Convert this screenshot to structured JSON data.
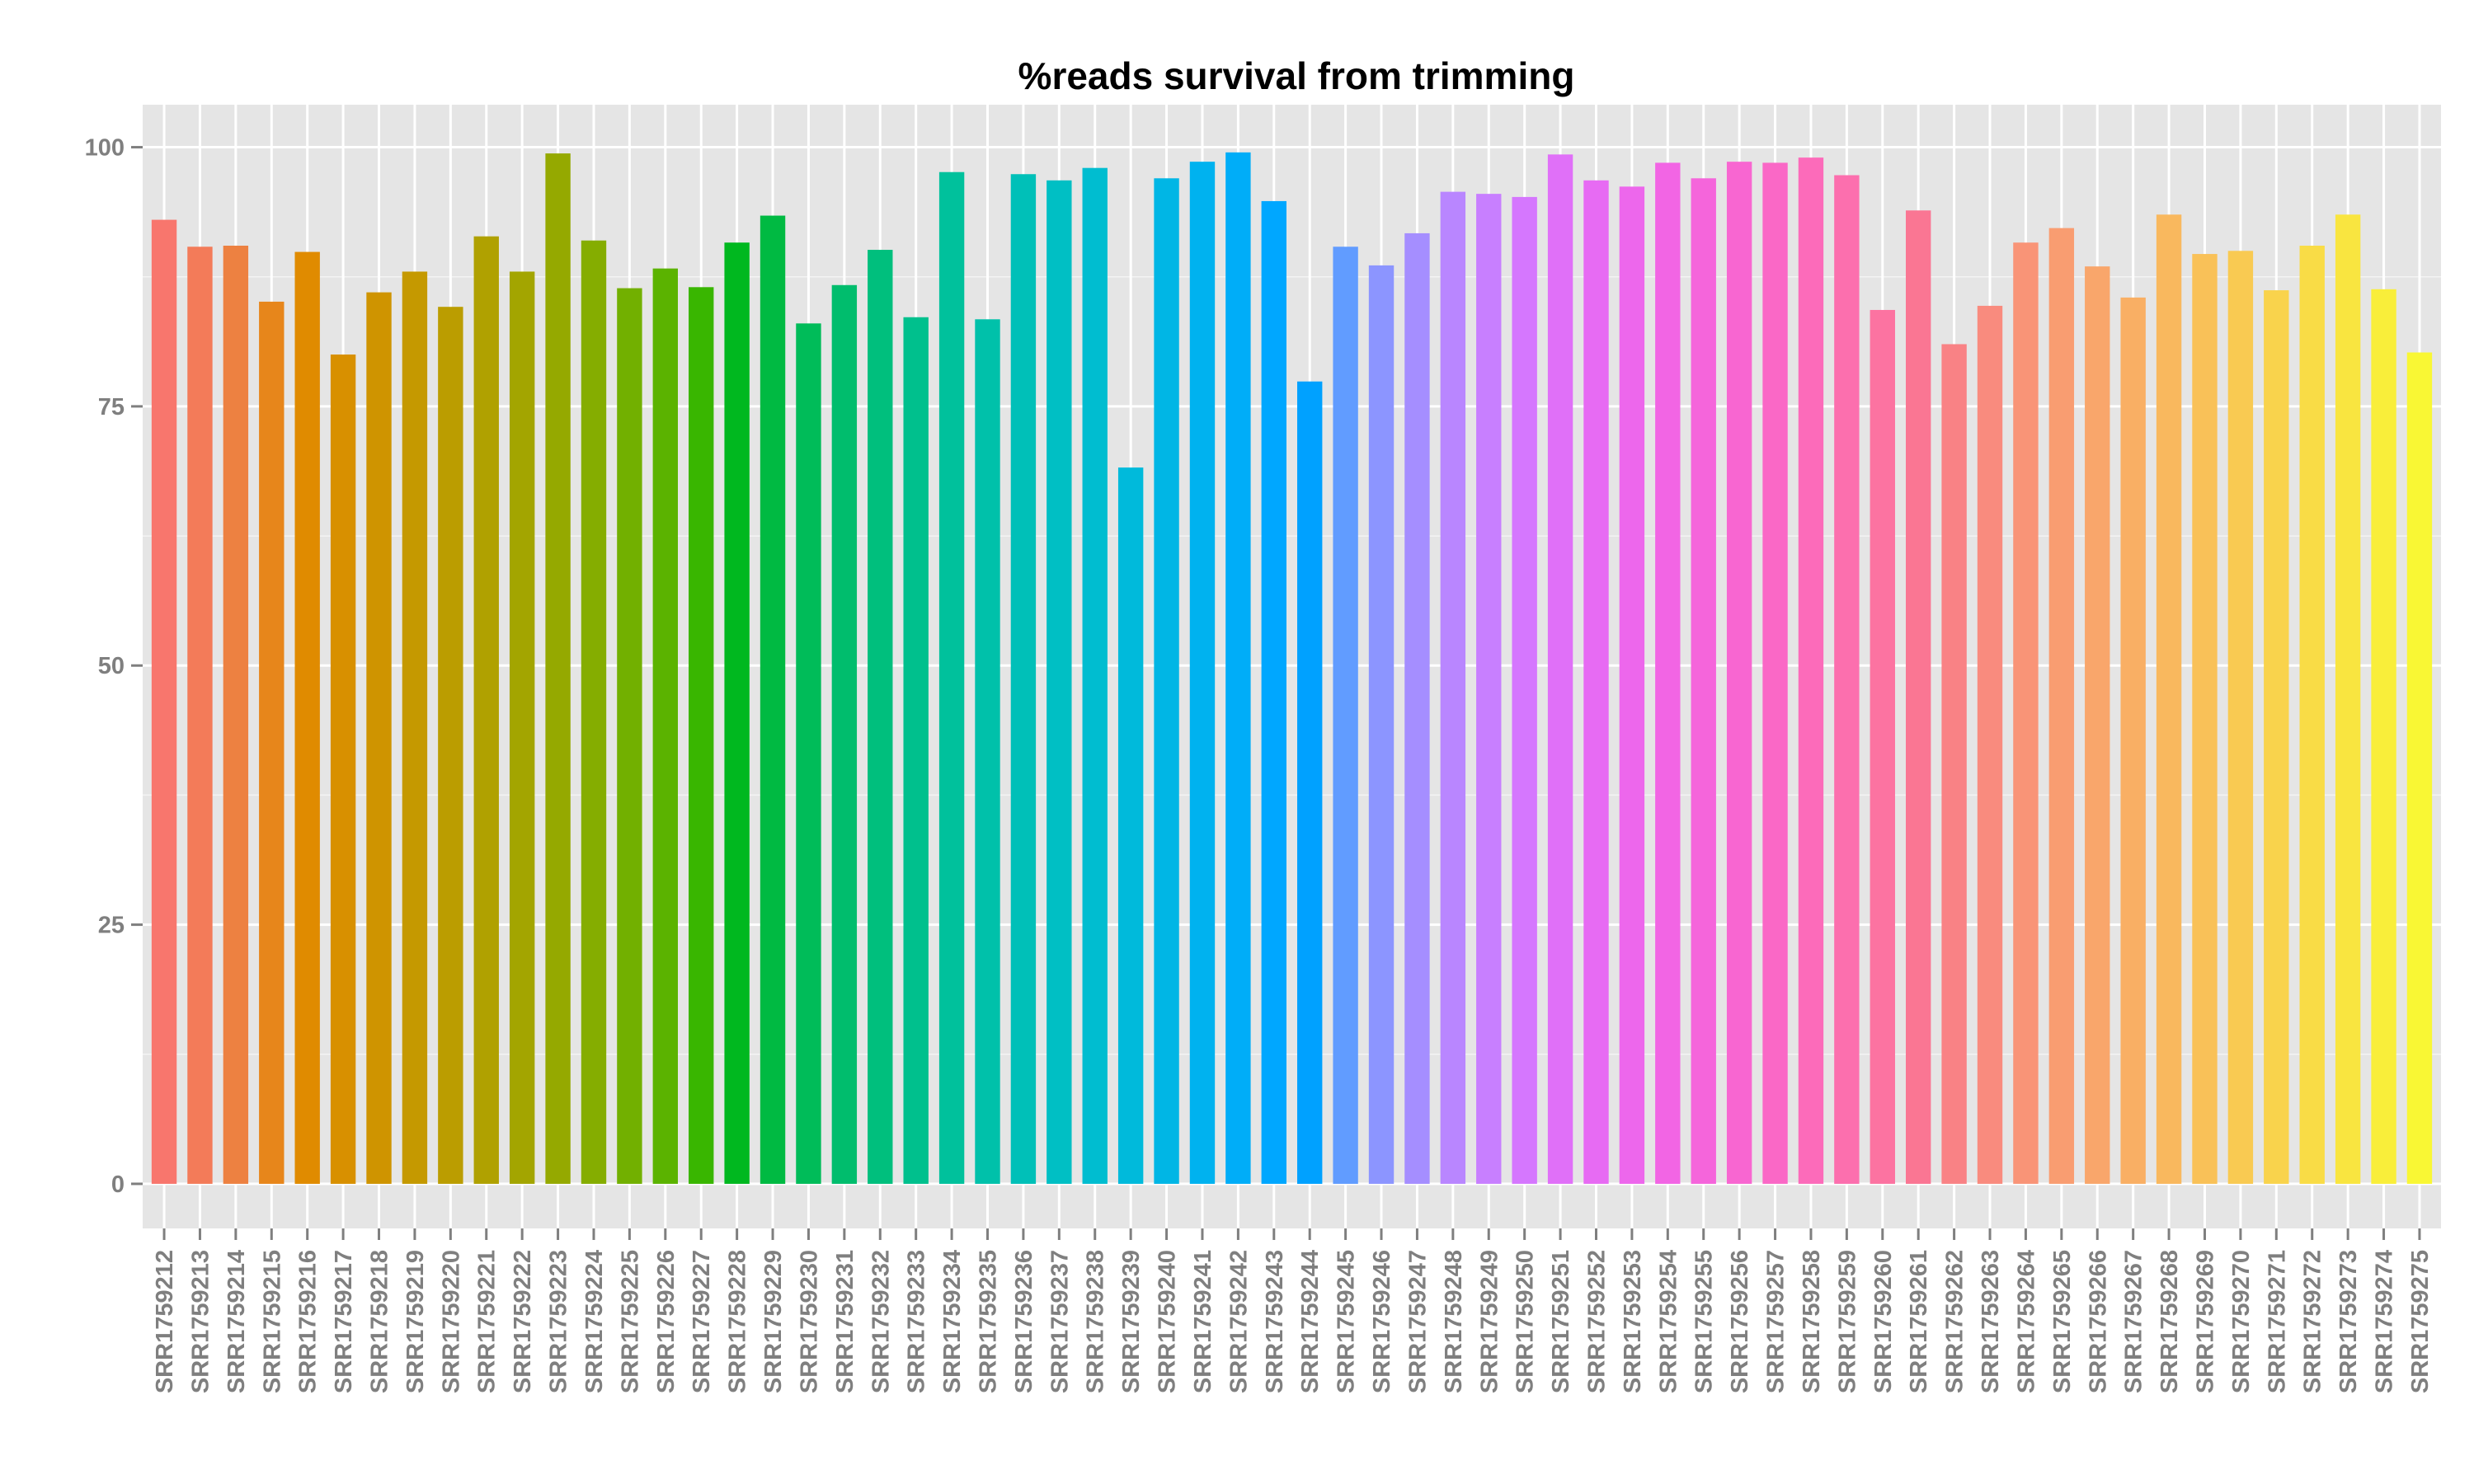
{
  "chart_data": {
    "type": "bar",
    "title": "%reads survival from trimming",
    "xlabel": "",
    "ylabel": "",
    "ylim": [
      -4.3,
      104.1
    ],
    "yticks": [
      0,
      25,
      50,
      75,
      100
    ],
    "grid": true,
    "legend": "none",
    "panel_color": "#e5e5e5",
    "gridline_color": "#ffffff",
    "categories": [
      "SRR1759212",
      "SRR1759213",
      "SRR1759214",
      "SRR1759215",
      "SRR1759216",
      "SRR1759217",
      "SRR1759218",
      "SRR1759219",
      "SRR1759220",
      "SRR1759221",
      "SRR1759222",
      "SRR1759223",
      "SRR1759224",
      "SRR1759225",
      "SRR1759226",
      "SRR1759227",
      "SRR1759228",
      "SRR1759229",
      "SRR1759230",
      "SRR1759231",
      "SRR1759232",
      "SRR1759233",
      "SRR1759234",
      "SRR1759235",
      "SRR1759236",
      "SRR1759237",
      "SRR1759238",
      "SRR1759239",
      "SRR1759240",
      "SRR1759241",
      "SRR1759242",
      "SRR1759243",
      "SRR1759244",
      "SRR1759245",
      "SRR1759246",
      "SRR1759247",
      "SRR1759248",
      "SRR1759249",
      "SRR1759250",
      "SRR1759251",
      "SRR1759252",
      "SRR1759253",
      "SRR1759254",
      "SRR1759255",
      "SRR1759256",
      "SRR1759257",
      "SRR1759258",
      "SRR1759259",
      "SRR1759260",
      "SRR1759261",
      "SRR1759262",
      "SRR1759263",
      "SRR1759264",
      "SRR1759265",
      "SRR1759266",
      "SRR1759267",
      "SRR1759268",
      "SRR1759269",
      "SRR1759270",
      "SRR1759271",
      "SRR1759272",
      "SRR1759273",
      "SRR1759274",
      "SRR1759275"
    ],
    "values": [
      93.0,
      90.4,
      90.5,
      85.1,
      89.9,
      80.0,
      86.0,
      88.0,
      84.6,
      91.4,
      88.0,
      99.4,
      91.0,
      86.4,
      88.3,
      86.5,
      90.8,
      93.4,
      83.0,
      86.7,
      90.1,
      83.6,
      97.6,
      83.4,
      97.4,
      96.8,
      98.0,
      69.1,
      97.0,
      98.6,
      99.5,
      94.8,
      77.4,
      90.4,
      88.6,
      91.7,
      95.7,
      95.5,
      95.2,
      99.3,
      96.8,
      96.2,
      98.5,
      97.0,
      98.6,
      98.5,
      99.0,
      97.3,
      84.3,
      93.9,
      81.0,
      84.7,
      90.8,
      92.2,
      88.5,
      85.5,
      93.5,
      89.7,
      90.0,
      86.2,
      90.5,
      93.5,
      86.3,
      80.2
    ],
    "colors": [
      "#F8766D",
      "#F37B59",
      "#ED8141",
      "#E7861B",
      "#E08B00",
      "#D89000",
      "#CF9400",
      "#C59900",
      "#BB9D00",
      "#B0A100",
      "#A3A500",
      "#95A900",
      "#85AD00",
      "#72B000",
      "#5BB300",
      "#39B600",
      "#00B81F",
      "#00BA42",
      "#00BC59",
      "#00BD6D",
      "#00BF7D",
      "#00C08D",
      "#00C19C",
      "#00C1AA",
      "#00C0B8",
      "#00BFC4",
      "#00BDD0",
      "#00BADB",
      "#00B6E5",
      "#00B2EF",
      "#00ADF8",
      "#00A7FF",
      "#00A1FF",
      "#619CFF",
      "#8C95FF",
      "#A58EFF",
      "#B986FF",
      "#C87FFF",
      "#D577FE",
      "#E070F8",
      "#E76BF3",
      "#ED67EC",
      "#F265E4",
      "#F565DB",
      "#F866D1",
      "#FA68C6",
      "#FC6BBA",
      "#FC6FAE",
      "#FC73A1",
      "#FA7693",
      "#F98285",
      "#F98B7E",
      "#F99477",
      "#F99D71",
      "#F9A66B",
      "#F9AF64",
      "#F9B85E",
      "#F9C158",
      "#F9CA52",
      "#F9D34C",
      "#F9DC46",
      "#F9E540",
      "#F9EE3A",
      "#F9F734"
    ]
  }
}
